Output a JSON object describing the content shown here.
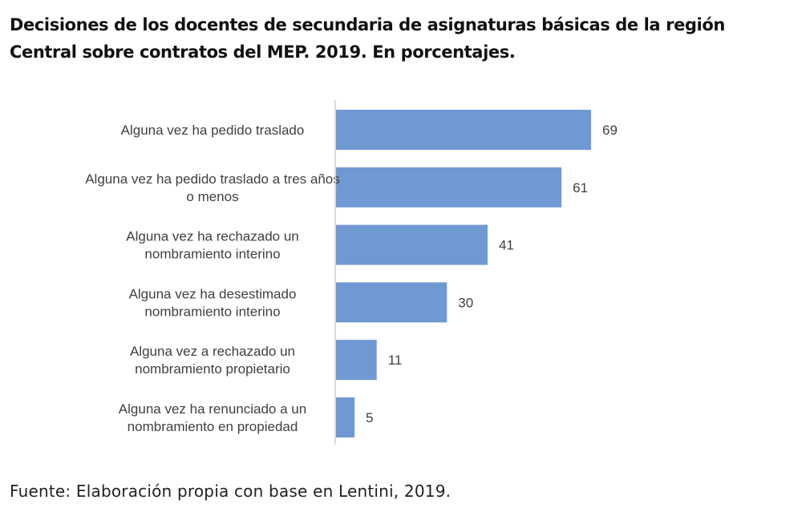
{
  "title": "Decisiones de los docentes de secundaria de asignaturas básicas de la región Central sobre contratos del MEP. 2019. En porcentajes.",
  "source": "Fuente: Elaboración propia con base en Lentini, 2019.",
  "chart_data": {
    "type": "bar",
    "orientation": "horizontal",
    "categories": [
      [
        "Alguna vez ha pedido traslado"
      ],
      [
        "Alguna vez ha pedido traslado a tres años",
        "o menos"
      ],
      [
        "Alguna vez ha rechazado un",
        "nombramiento interino"
      ],
      [
        "Alguna vez ha desestimado",
        "nombramiento interino"
      ],
      [
        "Alguna vez a rechazado un",
        "nombramiento propietario"
      ],
      [
        "Alguna vez ha renunciado a un",
        "nombramiento en propiedad"
      ]
    ],
    "values": [
      69,
      61,
      41,
      30,
      11,
      5
    ],
    "bar_color": "#7098d3",
    "axis_color": "#d0d0d0",
    "xlim": [
      0,
      100
    ],
    "grid": false,
    "legend": "none"
  }
}
